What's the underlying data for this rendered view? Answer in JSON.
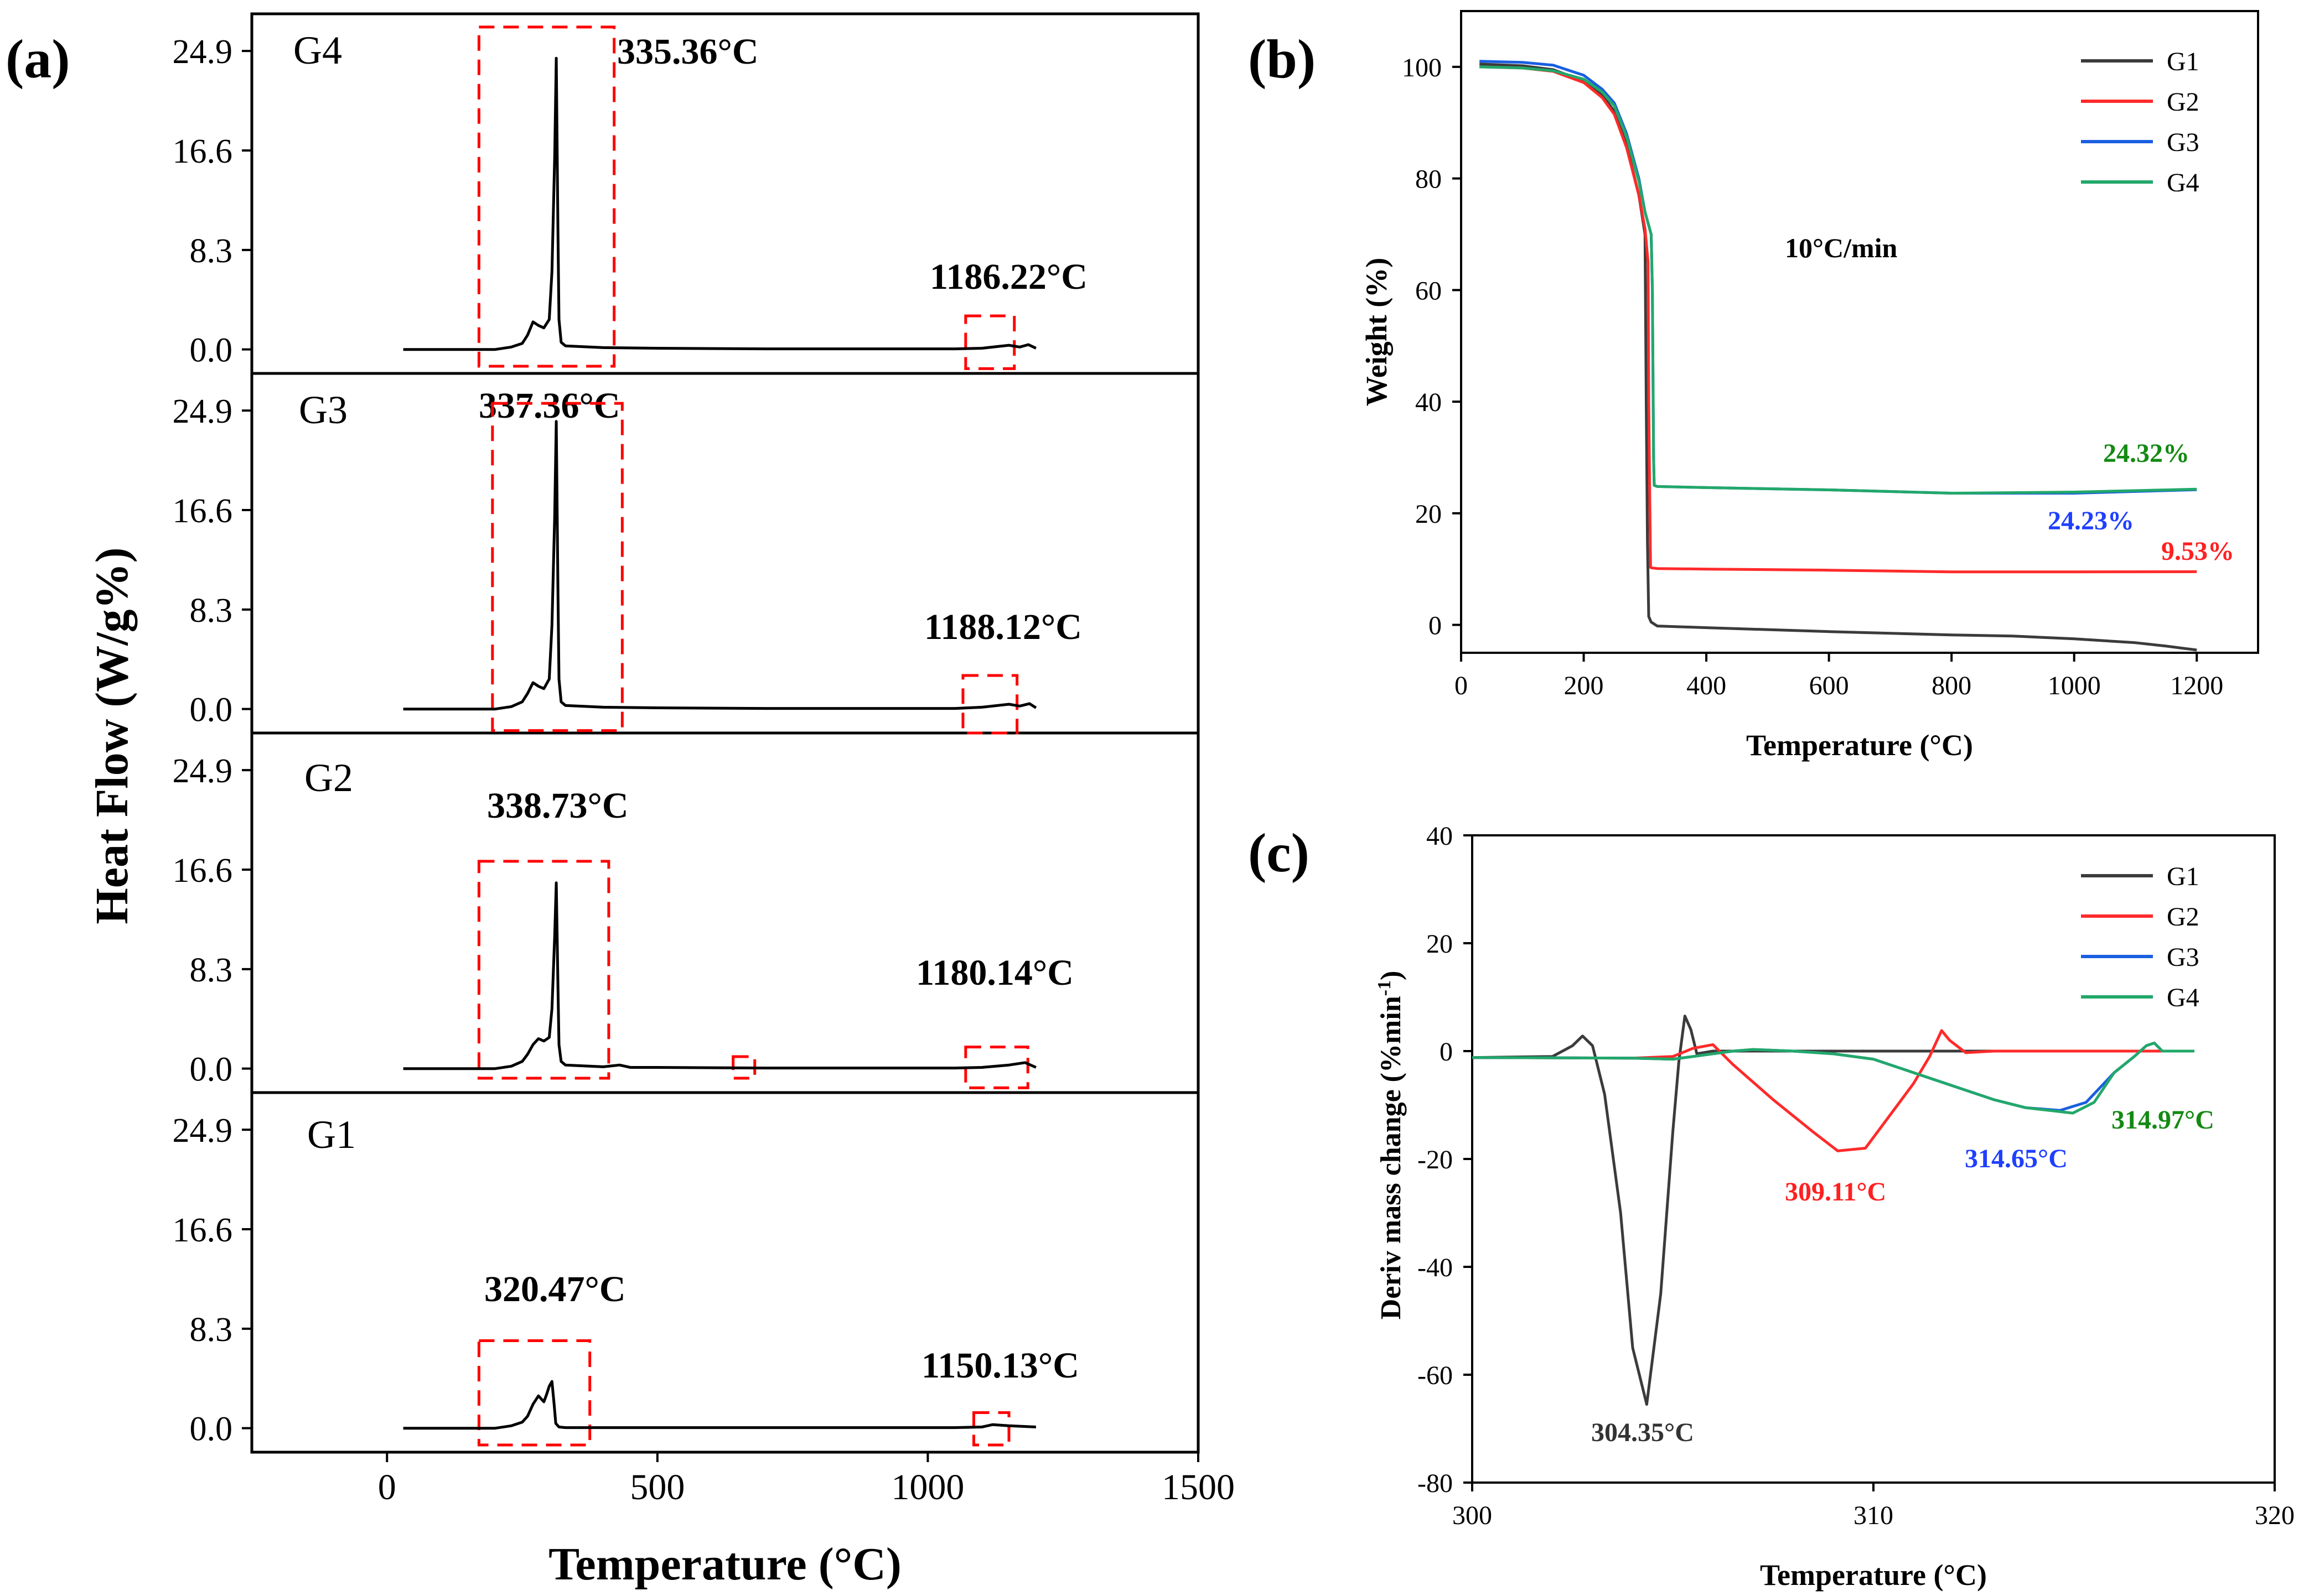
{
  "figure": {
    "panel_labels": [
      "(a)",
      "(b)",
      "(c)"
    ]
  },
  "chart_data": [
    {
      "id": "a",
      "type": "line",
      "title": "",
      "xlabel": "Temperature (°C)",
      "ylabel": "Heat Flow (W/g%)",
      "xlim": [
        -250,
        1500
      ],
      "ylim": [
        -2,
        28
      ],
      "xticks": [
        0,
        500,
        1000,
        1500
      ],
      "yticks": [
        0.0,
        8.3,
        16.6,
        24.9
      ],
      "ytick_labels": [
        "0.0",
        "8.3",
        "16.6",
        "24.9"
      ],
      "color": "#000000",
      "highlight_color": "#ff0000",
      "panels": [
        {
          "name": "G4",
          "series": {
            "x": [
              30,
              100,
              150,
              200,
              230,
              250,
              260,
              270,
              280,
              290,
              300,
              305,
              310,
              313,
              316,
              318,
              322,
              330,
              400,
              500,
              700,
              900,
              1050,
              1100,
              1150,
              1170,
              1186,
              1200
            ],
            "y": [
              0,
              0,
              0,
              0,
              0.2,
              0.5,
              1.2,
              2.3,
              2.0,
              1.8,
              2.5,
              6.5,
              16,
              24.3,
              10,
              2.5,
              0.6,
              0.3,
              0.15,
              0.1,
              0.05,
              0.05,
              0.05,
              0.1,
              0.35,
              0.2,
              0.4,
              0.1
            ]
          },
          "peaks": [
            {
              "label": "335.36°C"
            },
            {
              "label": "1186.22°C"
            }
          ],
          "boxes": [
            {
              "x": [
                170,
                420
              ],
              "y": [
                -1.4,
                26.9
              ]
            },
            {
              "x": [
                1070,
                1160
              ],
              "y": [
                -1.6,
                2.8
              ]
            }
          ]
        },
        {
          "name": "G3",
          "series": {
            "x": [
              30,
              100,
              150,
              200,
              230,
              250,
              260,
              270,
              280,
              290,
              300,
              305,
              310,
              313,
              316,
              318,
              322,
              330,
              400,
              500,
              700,
              900,
              1050,
              1100,
              1150,
              1170,
              1188,
              1200
            ],
            "y": [
              0,
              0,
              0,
              0,
              0.2,
              0.6,
              1.3,
              2.2,
              1.9,
              1.7,
              2.5,
              7,
              16,
              24,
              10,
              2.5,
              0.6,
              0.3,
              0.15,
              0.1,
              0.05,
              0.05,
              0.05,
              0.15,
              0.4,
              0.25,
              0.45,
              0.1
            ]
          },
          "peaks": [
            {
              "label": "337.36°C"
            },
            {
              "label": "1188.12°C"
            }
          ],
          "boxes": [
            {
              "x": [
                195,
                435
              ],
              "y": [
                -1.8,
                25.5
              ]
            },
            {
              "x": [
                1065,
                1165
              ],
              "y": [
                -2.0,
                2.8
              ]
            }
          ]
        },
        {
          "name": "G2",
          "series": {
            "x": [
              30,
              100,
              150,
              200,
              230,
              250,
              260,
              270,
              280,
              290,
              300,
              305,
              310,
              313,
              316,
              318,
              322,
              330,
              400,
              430,
              450,
              500,
              700,
              900,
              1050,
              1100,
              1150,
              1180,
              1200
            ],
            "y": [
              0,
              0,
              0,
              0,
              0.2,
              0.6,
              1.2,
              2.0,
              2.5,
              2.3,
              2.6,
              5,
              11,
              15.5,
              7,
              2,
              0.6,
              0.3,
              0.15,
              0.3,
              0.1,
              0.1,
              0.05,
              0.05,
              0.05,
              0.1,
              0.3,
              0.5,
              0.1
            ]
          },
          "peaks": [
            {
              "label": "338.73°C"
            }
          ],
          "boxes": [
            {
              "x": [
                170,
                410
              ],
              "y": [
                -0.8,
                17.3
              ]
            },
            {
              "x": [
                640,
                680
              ],
              "y": [
                -0.8,
                1.0
              ]
            },
            {
              "x": [
                1070,
                1185
              ],
              "y": [
                -1.6,
                1.8
              ]
            }
          ]
        },
        {
          "name": "G1",
          "series": {
            "x": [
              30,
              100,
              150,
              200,
              230,
              250,
              260,
              270,
              280,
              290,
              295,
              300,
              305,
              309,
              312,
              318,
              330,
              400,
              500,
              700,
              900,
              1050,
              1100,
              1120,
              1150,
              1200
            ],
            "y": [
              0,
              0,
              0,
              0,
              0.2,
              0.5,
              1.0,
              2.0,
              2.7,
              2.2,
              2.8,
              3.5,
              3.9,
              2.0,
              0.4,
              0.1,
              0.05,
              0.05,
              0.05,
              0.05,
              0.05,
              0.05,
              0.1,
              0.3,
              0.2,
              0.1
            ]
          },
          "peaks": [
            {
              "label": "320.47°C"
            },
            {
              "label": "1150.13°C"
            }
          ],
          "boxes": [
            {
              "x": [
                170,
                375
              ],
              "y": [
                -1.4,
                7.3
              ]
            },
            {
              "x": [
                1085,
                1150
              ],
              "y": [
                -1.4,
                1.3
              ]
            }
          ]
        }
      ]
    },
    {
      "id": "b",
      "type": "line",
      "title": "",
      "xlabel": "Temperature (°C)",
      "ylabel": "Weight (%)",
      "xlim": [
        0,
        1300
      ],
      "ylim": [
        -5,
        110
      ],
      "xticks": [
        0,
        200,
        400,
        600,
        800,
        1000,
        1200
      ],
      "yticks": [
        0,
        20,
        40,
        60,
        80,
        100
      ],
      "annotation": "10°C/min",
      "legend": {
        "placement": "top-right"
      },
      "series": [
        {
          "name": "G1",
          "color": "#3b3b3b",
          "x": [
            30,
            100,
            150,
            200,
            230,
            250,
            270,
            290,
            300,
            302,
            304,
            306,
            310,
            320,
            400,
            600,
            800,
            900,
            1000,
            1100,
            1150,
            1200
          ],
          "y": [
            100.5,
            100.2,
            99.5,
            97.5,
            95,
            92,
            86,
            77,
            70,
            40,
            15,
            1.5,
            0.5,
            -0.2,
            -0.5,
            -1.2,
            -1.8,
            -2,
            -2.5,
            -3.2,
            -3.8,
            -4.5
          ]
        },
        {
          "name": "G2",
          "color": "#ff2a2a",
          "x": [
            30,
            100,
            150,
            200,
            230,
            250,
            270,
            290,
            300,
            305,
            306,
            308,
            309,
            312,
            320,
            400,
            600,
            800,
            1000,
            1200
          ],
          "y": [
            100,
            99.8,
            99.2,
            97.2,
            94.5,
            91.5,
            85.5,
            77,
            71,
            65,
            40,
            20,
            10.3,
            10.2,
            10.1,
            10,
            9.8,
            9.5,
            9.5,
            9.53
          ]
        },
        {
          "name": "G3",
          "color": "#1a5fe0",
          "x": [
            30,
            100,
            150,
            200,
            230,
            250,
            270,
            290,
            300,
            310,
            312,
            313,
            314,
            315,
            320,
            400,
            600,
            800,
            1000,
            1200
          ],
          "y": [
            101,
            100.8,
            100.3,
            98.5,
            96,
            93.5,
            88,
            80,
            74,
            70,
            60,
            45,
            30,
            25,
            24.8,
            24.6,
            24.2,
            23.6,
            23.6,
            24.23
          ]
        },
        {
          "name": "G4",
          "color": "#22a86a",
          "x": [
            30,
            100,
            150,
            200,
            230,
            250,
            270,
            290,
            300,
            310,
            312,
            313,
            314,
            315,
            320,
            400,
            600,
            800,
            1000,
            1200
          ],
          "y": [
            100,
            99.8,
            99.3,
            97.8,
            95.5,
            93,
            87.5,
            79.5,
            74,
            70,
            60,
            45,
            30,
            25,
            24.8,
            24.6,
            24.2,
            23.6,
            23.8,
            24.32
          ]
        }
      ],
      "end_labels": [
        {
          "text": "24.32%",
          "color": "#138a13"
        },
        {
          "text": "24.23%",
          "color": "#1f3fff"
        },
        {
          "text": "9.53%",
          "color": "#ff2020"
        }
      ]
    },
    {
      "id": "c",
      "type": "line",
      "title": "",
      "xlabel": "Temperature (°C)",
      "ylabel": "Deriv mass change (%min-1)",
      "ylabel_main": "Deriv mass change (%min",
      "ylabel_sup": "-1",
      "ylabel_close": ")",
      "xlim": [
        300,
        320
      ],
      "ylim": [
        -80,
        40
      ],
      "xticks": [
        300,
        310,
        320
      ],
      "yticks": [
        -80,
        -60,
        -40,
        -20,
        0,
        20,
        40
      ],
      "legend": {
        "placement": "top-right"
      },
      "series": [
        {
          "name": "G1",
          "color": "#3b3b3b",
          "x": [
            300,
            302,
            302.5,
            302.75,
            303,
            303.3,
            303.7,
            304,
            304.35,
            304.7,
            305,
            305.15,
            305.3,
            305.45,
            305.6,
            306,
            310,
            315,
            318
          ],
          "y": [
            -1.2,
            -1,
            1,
            2.8,
            1,
            -8,
            -30,
            -55,
            -65.5,
            -45,
            -15,
            -2,
            6.5,
            4,
            -0.5,
            0,
            0,
            0,
            0
          ]
        },
        {
          "name": "G2",
          "color": "#ff2a2a",
          "x": [
            300,
            304,
            305,
            305.5,
            306,
            306.5,
            307.5,
            308.5,
            309.11,
            309.8,
            310.5,
            311,
            311.4,
            311.7,
            311.9,
            312.3,
            313,
            315,
            318
          ],
          "y": [
            -1.2,
            -1.3,
            -1,
            0.5,
            1.2,
            -2.5,
            -9,
            -15,
            -18.5,
            -18,
            -11,
            -6,
            -1,
            3.8,
            2,
            -0.3,
            0,
            0,
            0
          ]
        },
        {
          "name": "G3",
          "color": "#1a5fe0",
          "x": [
            300,
            304,
            305,
            305.5,
            306,
            306.5,
            307,
            308,
            309,
            310,
            311,
            312,
            313,
            313.8,
            314.65,
            315.3,
            316,
            316.5,
            316.8,
            317,
            317.2,
            318
          ],
          "y": [
            -1.2,
            -1.3,
            -1.5,
            -1,
            -0.5,
            0,
            0.3,
            0,
            -0.5,
            -1.5,
            -4,
            -6.5,
            -9,
            -10.5,
            -11,
            -9.5,
            -4,
            -1,
            1,
            1.5,
            0,
            0
          ]
        },
        {
          "name": "G4",
          "color": "#22a86a",
          "x": [
            300,
            304,
            305,
            305.5,
            306,
            306.5,
            307,
            308,
            309,
            310,
            311,
            312,
            313,
            313.8,
            314.97,
            315.5,
            316,
            316.5,
            316.8,
            317,
            317.2,
            318
          ],
          "y": [
            -1.2,
            -1.3,
            -1.5,
            -1,
            -0.5,
            0,
            0.3,
            0,
            -0.5,
            -1.5,
            -4,
            -6.5,
            -9,
            -10.5,
            -11.5,
            -9.5,
            -4,
            -1,
            1,
            1.5,
            0,
            0
          ]
        }
      ],
      "peak_labels": [
        {
          "text": "304.35°C",
          "color": "#333333"
        },
        {
          "text": "309.11°C",
          "color": "#ff2020"
        },
        {
          "text": "314.65°C",
          "color": "#1f3fff"
        },
        {
          "text": "314.97°C",
          "color": "#138a13"
        }
      ]
    }
  ]
}
